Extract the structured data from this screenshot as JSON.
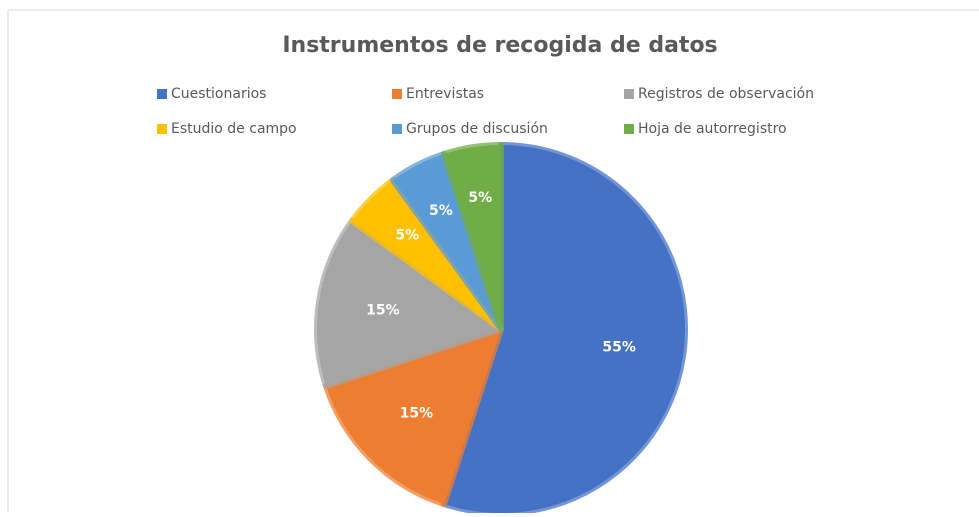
{
  "chart_data": {
    "type": "pie",
    "title": "Instrumentos de recogida de datos",
    "categories": [
      "Cuestionarios",
      "Entrevistas",
      "Registros de observación",
      "Estudio de campo",
      "Grupos de discusión",
      "Hoja de autorregistro"
    ],
    "values": [
      55,
      15,
      15,
      5,
      5,
      5
    ],
    "value_labels": [
      "55%",
      "15%",
      "15%",
      "5%",
      "5%",
      "5%"
    ],
    "colors": [
      "#4472c4",
      "#ed7d31",
      "#a5a5a5",
      "#ffc000",
      "#5b9bd5",
      "#70ad47"
    ],
    "legend": "top"
  }
}
